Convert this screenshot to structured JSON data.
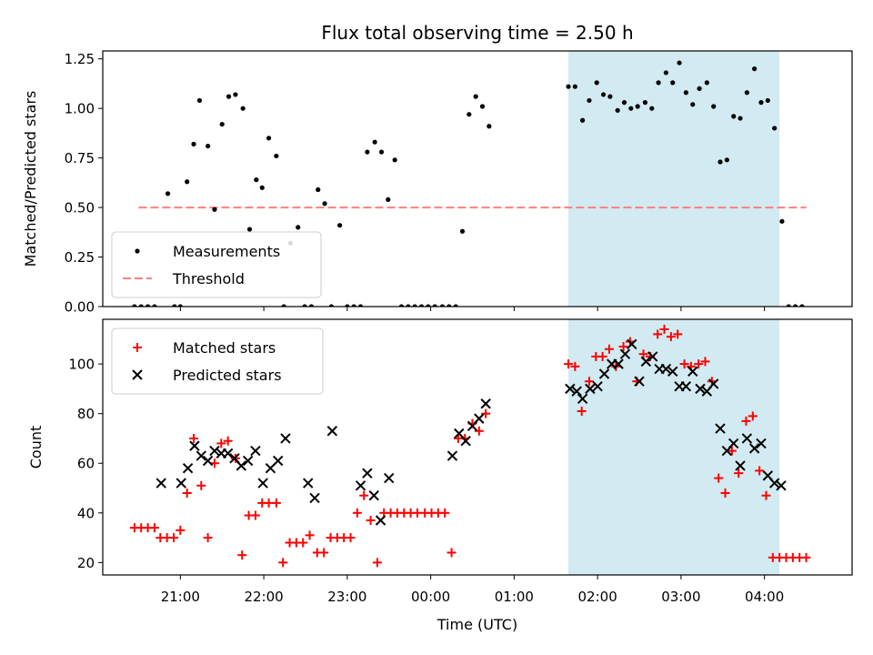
{
  "chart_data": [
    {
      "type": "scatter",
      "title": "Flux total observing time = 2.50 h",
      "xlabel": "",
      "ylabel": "Matched/Predicted stars",
      "ylim": [
        0,
        1.29
      ],
      "yticks": [
        "0.00",
        "0.25",
        "0.50",
        "0.75",
        "1.00",
        "1.25"
      ],
      "ytick_values": [
        0,
        0.25,
        0.5,
        0.75,
        1.0,
        1.25
      ],
      "x_range_hours": [
        20.07,
        29.05
      ],
      "grid": false,
      "legend_position": "lower-left",
      "shaded_interval_hours": [
        25.65,
        28.18
      ],
      "shade_color": "#add8e6",
      "threshold": {
        "name": "Threshold",
        "value": 0.5,
        "x_start": 20.5,
        "x_end": 28.5,
        "color": "#ff7f7f"
      },
      "series": [
        {
          "name": "Measurements",
          "color": "#000000",
          "marker": "dot",
          "x": [
            20.45,
            20.53,
            20.61,
            20.69,
            20.85,
            20.93,
            21.0,
            21.08,
            21.16,
            21.23,
            21.33,
            21.41,
            21.5,
            21.58,
            21.66,
            21.75,
            21.83,
            21.91,
            21.98,
            22.06,
            22.15,
            22.24,
            22.32,
            22.41,
            22.49,
            22.57,
            22.65,
            22.73,
            22.81,
            22.91,
            23.0,
            23.08,
            23.16,
            23.24,
            23.33,
            23.41,
            23.49,
            23.57,
            23.65,
            23.73,
            23.81,
            23.89,
            23.97,
            24.05,
            24.14,
            24.22,
            24.3,
            24.38,
            24.46,
            24.54,
            24.62,
            24.7,
            25.65,
            25.73,
            25.82,
            25.9,
            25.99,
            26.07,
            26.15,
            26.24,
            26.32,
            26.4,
            26.48,
            26.57,
            26.65,
            26.73,
            26.82,
            26.9,
            26.98,
            27.06,
            27.14,
            27.22,
            27.31,
            27.39,
            27.47,
            27.55,
            27.63,
            27.71,
            27.79,
            27.88,
            27.96,
            28.04,
            28.12,
            28.21,
            28.29,
            28.37,
            28.45
          ],
          "y": [
            0,
            0,
            0,
            0,
            0.57,
            0,
            0,
            0.63,
            0.82,
            1.04,
            0.81,
            0.49,
            0.92,
            1.06,
            1.07,
            1.0,
            0.39,
            0.64,
            0.6,
            0.85,
            0.76,
            0,
            0.32,
            0.4,
            0,
            0,
            0.59,
            0.52,
            0,
            0.41,
            0,
            0,
            0,
            0.78,
            0.83,
            0.78,
            0.54,
            0.74,
            0,
            0,
            0,
            0,
            0,
            0,
            0,
            0,
            0,
            0.38,
            0.97,
            1.06,
            1.01,
            0.91,
            1.11,
            1.11,
            0.94,
            1.04,
            1.13,
            1.07,
            1.06,
            0.99,
            1.03,
            1.0,
            1.01,
            1.03,
            1.0,
            1.13,
            1.18,
            1.13,
            1.23,
            1.08,
            1.02,
            1.1,
            1.13,
            1.01,
            0.73,
            0.74,
            0.96,
            0.95,
            1.08,
            1.2,
            1.03,
            1.04,
            0.9,
            0.43,
            0,
            0,
            0
          ]
        }
      ]
    },
    {
      "type": "scatter",
      "title": "",
      "xlabel": "Time (UTC)",
      "ylabel": "Count",
      "ylim": [
        15,
        118
      ],
      "yticks": [
        "20",
        "40",
        "60",
        "80",
        "100"
      ],
      "ytick_values": [
        20,
        40,
        60,
        80,
        100
      ],
      "x_range_hours": [
        20.07,
        29.05
      ],
      "xticks": [
        "21:00",
        "22:00",
        "23:00",
        "00:00",
        "01:00",
        "02:00",
        "03:00",
        "04:00"
      ],
      "xtick_hours": [
        21,
        22,
        23,
        24,
        25,
        26,
        27,
        28
      ],
      "grid": false,
      "legend_position": "top-left",
      "shaded_interval_hours": [
        25.65,
        28.18
      ],
      "shade_color": "#add8e6",
      "series": [
        {
          "name": "Matched stars",
          "color": "#ff0000",
          "marker": "plus",
          "x": [
            20.45,
            20.53,
            20.61,
            20.69,
            20.76,
            20.84,
            20.92,
            21.0,
            21.08,
            21.16,
            21.25,
            21.33,
            21.41,
            21.49,
            21.57,
            21.66,
            21.74,
            21.82,
            21.9,
            21.98,
            22.06,
            22.15,
            22.23,
            22.31,
            22.39,
            22.47,
            22.55,
            22.64,
            22.72,
            22.8,
            22.88,
            22.96,
            23.04,
            23.12,
            23.2,
            23.28,
            23.36,
            23.44,
            23.52,
            23.6,
            23.68,
            23.76,
            23.84,
            23.93,
            24.01,
            24.09,
            24.17,
            24.25,
            24.33,
            24.41,
            24.5,
            24.58,
            24.66,
            25.65,
            25.73,
            25.81,
            25.9,
            25.98,
            26.06,
            26.14,
            26.22,
            26.31,
            26.39,
            26.47,
            26.55,
            26.63,
            26.72,
            26.8,
            26.88,
            26.96,
            27.04,
            27.12,
            27.21,
            27.29,
            27.37,
            27.45,
            27.53,
            27.61,
            27.69,
            27.78,
            27.86,
            27.94,
            28.02,
            28.1,
            28.18,
            28.26,
            28.34,
            28.42,
            28.5
          ],
          "y": [
            34,
            34,
            34,
            34,
            30,
            30,
            30,
            33,
            48,
            70,
            51,
            30,
            60,
            68,
            69,
            62,
            23,
            39,
            39,
            44,
            44,
            44,
            20,
            28,
            28,
            28,
            31,
            24,
            24,
            30,
            30,
            30,
            30,
            40,
            47,
            37,
            20,
            40,
            40,
            40,
            40,
            40,
            40,
            40,
            40,
            40,
            40,
            24,
            70,
            70,
            76,
            73,
            80,
            100,
            99,
            81,
            93,
            103,
            103,
            106,
            99,
            107,
            109,
            93,
            104,
            103,
            112,
            114,
            111,
            112,
            100,
            99,
            100,
            101,
            93,
            54,
            48,
            65,
            56,
            77,
            79,
            57,
            47,
            22,
            22,
            22,
            22,
            22,
            22
          ]
        },
        {
          "name": "Predicted stars",
          "color": "#000000",
          "marker": "x",
          "x": [
            20.77,
            21.01,
            21.09,
            21.17,
            21.25,
            21.33,
            21.41,
            21.49,
            21.57,
            21.65,
            21.73,
            21.81,
            21.9,
            21.99,
            22.08,
            22.17,
            22.26,
            22.53,
            22.61,
            22.82,
            23.16,
            23.24,
            23.32,
            23.4,
            23.5,
            24.26,
            24.34,
            24.42,
            24.5,
            24.58,
            24.66,
            25.67,
            25.75,
            25.82,
            25.91,
            26.0,
            26.08,
            26.17,
            26.25,
            26.33,
            26.41,
            26.5,
            26.58,
            26.66,
            26.74,
            26.82,
            26.9,
            26.98,
            27.06,
            27.14,
            27.23,
            27.31,
            27.39,
            27.47,
            27.55,
            27.63,
            27.71,
            27.79,
            27.88,
            27.96,
            28.04,
            28.12,
            28.2
          ],
          "y": [
            52,
            52,
            58,
            67,
            63,
            61,
            65,
            64,
            64,
            62,
            59,
            61,
            65,
            52,
            58,
            61,
            70,
            52,
            46,
            73,
            51,
            56,
            47,
            37,
            54,
            63,
            72,
            69,
            75,
            78,
            84,
            90,
            89,
            86,
            90,
            91,
            96,
            100,
            100,
            104,
            108,
            93,
            101,
            103,
            98,
            98,
            97,
            91,
            91,
            97,
            90,
            89,
            92,
            74,
            65,
            68,
            59,
            70,
            66,
            68,
            55,
            52,
            51
          ]
        }
      ]
    }
  ]
}
